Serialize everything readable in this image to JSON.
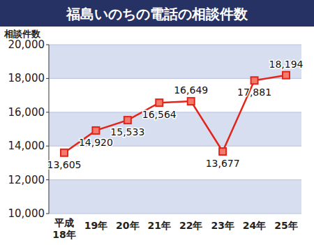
{
  "chart_data": {
    "type": "line",
    "title": "福島いのちの電話の相談件数",
    "y_label": "相談件数",
    "categories": [
      "平成18年",
      "19年",
      "20年",
      "21年",
      "22年",
      "23年",
      "24年",
      "25年"
    ],
    "values": [
      13605,
      14920,
      15533,
      16564,
      16649,
      13677,
      17881,
      18194
    ],
    "value_labels": [
      "13,605",
      "14,920",
      "15,533",
      "16,564",
      "16,649",
      "13,677",
      "17,881",
      "18,194"
    ],
    "color": "#e3241b",
    "marker": "square",
    "data_labels": true,
    "grid": true,
    "ylim": [
      10000,
      20000
    ],
    "yticks": [
      {
        "value": 10000,
        "label": "10,000"
      },
      {
        "value": 12000,
        "label": "12,000"
      },
      {
        "value": 14000,
        "label": "14,000"
      },
      {
        "value": 16000,
        "label": "16,000"
      },
      {
        "value": 18000,
        "label": "18,000"
      },
      {
        "value": 20000,
        "label": "20,000"
      }
    ]
  }
}
